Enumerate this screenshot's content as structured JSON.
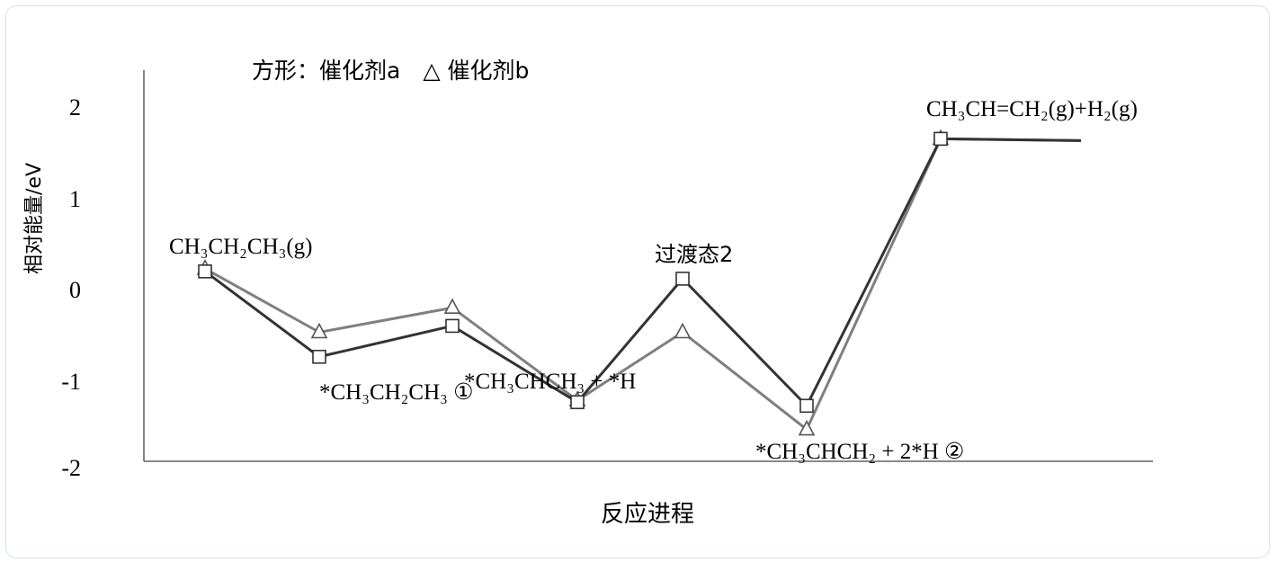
{
  "chart_data": {
    "type": "line",
    "legend_text": "方形：催化剂a　△ 催化剂b",
    "ylabel": "相对能量/eV",
    "xlabel": "反应进程",
    "ylim": [
      -2,
      2
    ],
    "yticks": [
      "2",
      "1",
      "0",
      "-1",
      "-2"
    ],
    "colors": {
      "a": "#333333",
      "b": "#7f7f7f"
    },
    "series": [
      {
        "marker": "square",
        "color": "#333333",
        "values": [
          0.17,
          -0.77,
          -0.43,
          -1.27,
          0.09,
          -1.31,
          1.63,
          1.61
        ]
      },
      {
        "marker": "triangle",
        "color": "#7f7f7f",
        "values": [
          0.2,
          -0.5,
          -0.23,
          -1.25,
          -0.5,
          -1.57,
          1.63,
          1.61
        ]
      }
    ],
    "annotations": [
      "CH₃CH₂CH₃(g)",
      "*CH₃CH₂CH₃ ①",
      "*CH₃CHCH₃ + *H",
      "过渡态2",
      "*CH₃CHCH₂ + 2*H ②",
      "CH₃CH=CH₂(g)+H₂(g)"
    ]
  }
}
